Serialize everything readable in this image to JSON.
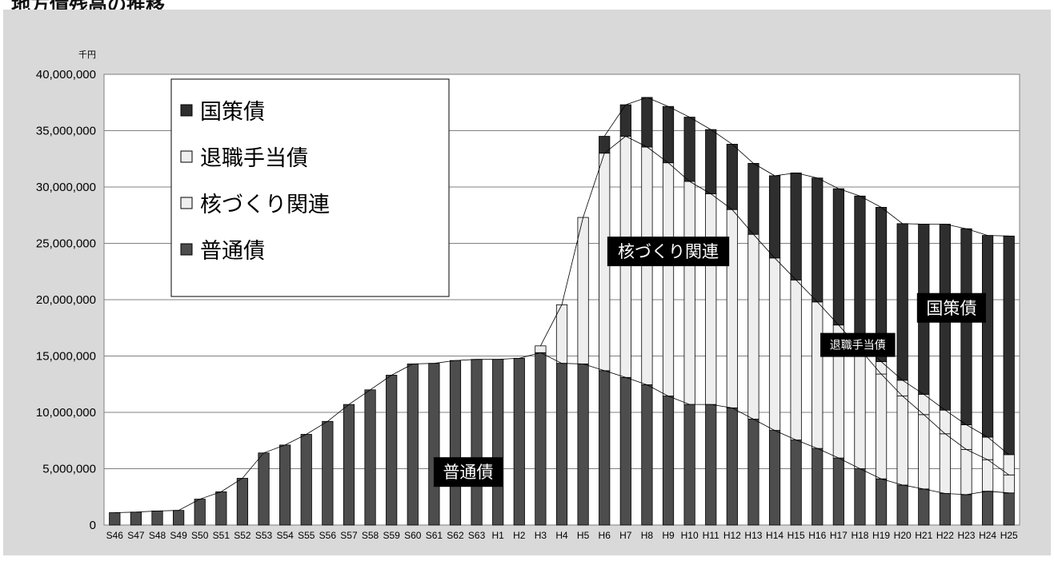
{
  "page_title": "地方債残高の推移",
  "chart_data": {
    "type": "bar",
    "stacked": true,
    "unit_label": "千円",
    "title": "",
    "xlabel": "",
    "ylabel": "",
    "ylim": [
      0,
      40000000
    ],
    "y_ticks": [
      0,
      5000000,
      10000000,
      15000000,
      20000000,
      25000000,
      30000000,
      35000000,
      40000000
    ],
    "y_tick_labels": [
      "0",
      "5,000,000",
      "10,000,000",
      "15,000,000",
      "20,000,000",
      "25,000,000",
      "30,000,000",
      "35,000,000",
      "40,000,000"
    ],
    "grid": true,
    "connector_lines": true,
    "categories": [
      "S46",
      "S47",
      "S48",
      "S49",
      "S50",
      "S51",
      "S52",
      "S53",
      "S54",
      "S55",
      "S56",
      "S57",
      "S58",
      "S59",
      "S60",
      "S61",
      "S62",
      "S63",
      "H1",
      "H2",
      "H3",
      "H4",
      "H5",
      "H6",
      "H7",
      "H8",
      "H9",
      "H10",
      "H11",
      "H12",
      "H13",
      "H14",
      "H15",
      "H16",
      "H17",
      "H18",
      "H19",
      "H20",
      "H21",
      "H22",
      "H23",
      "H24",
      "H25"
    ],
    "series": [
      {
        "name": "普通債",
        "color": "#4d4d4d",
        "values": [
          1100000,
          1150000,
          1250000,
          1300000,
          2300000,
          2950000,
          4150000,
          6400000,
          7100000,
          8050000,
          9200000,
          10700000,
          12000000,
          13300000,
          14300000,
          14350000,
          14600000,
          14700000,
          14700000,
          14800000,
          15300000,
          14350000,
          14300000,
          13700000,
          13100000,
          12450000,
          11450000,
          10700000,
          10700000,
          10400000,
          9400000,
          8400000,
          7550000,
          6800000,
          5950000,
          5000000,
          4100000,
          3550000,
          3200000,
          2800000,
          2700000,
          3000000,
          2850000
        ]
      },
      {
        "name": "核づくり関連",
        "color": "#eeeeee",
        "values": [
          0,
          0,
          0,
          0,
          0,
          0,
          0,
          0,
          0,
          0,
          0,
          0,
          0,
          0,
          0,
          0,
          0,
          0,
          0,
          0,
          600000,
          5200000,
          13000000,
          19300000,
          21400000,
          21100000,
          20700000,
          19800000,
          18700000,
          17600000,
          16400000,
          15300000,
          14200000,
          13000000,
          11800000,
          10600000,
          9300000,
          7900000,
          6600000,
          5300000,
          4000000,
          2800000,
          1600000
        ]
      },
      {
        "name": "退職手当債",
        "color": "#eeeeee",
        "values": [
          0,
          0,
          0,
          0,
          0,
          0,
          0,
          0,
          0,
          0,
          0,
          0,
          0,
          0,
          0,
          0,
          0,
          0,
          0,
          0,
          0,
          0,
          0,
          0,
          0,
          0,
          0,
          0,
          0,
          0,
          0,
          0,
          0,
          0,
          0,
          700000,
          1100000,
          1400000,
          1800000,
          2100000,
          2200000,
          2000000,
          1800000
        ]
      },
      {
        "name": "国策債",
        "color": "#2e2e2e",
        "values": [
          0,
          0,
          0,
          0,
          0,
          0,
          0,
          0,
          0,
          0,
          0,
          0,
          0,
          0,
          0,
          0,
          0,
          0,
          0,
          0,
          0,
          0,
          0,
          1500000,
          2800000,
          4400000,
          5000000,
          5700000,
          5700000,
          5800000,
          6300000,
          7300000,
          9500000,
          11000000,
          12100000,
          12900000,
          13700000,
          13900000,
          15100000,
          16500000,
          17400000,
          17900000,
          19400000
        ]
      }
    ],
    "legend": {
      "placement": "top-left",
      "items": [
        "国策債",
        "退職手当債",
        "核づくり関連",
        "普通債"
      ]
    },
    "annotations": [
      {
        "text": "普通債",
        "series": "普通債"
      },
      {
        "text": "核づくり関連",
        "series": "核づくり関連"
      },
      {
        "text": "退職手当債",
        "series": "退職手当債"
      },
      {
        "text": "国策債",
        "series": "国策債"
      }
    ]
  }
}
